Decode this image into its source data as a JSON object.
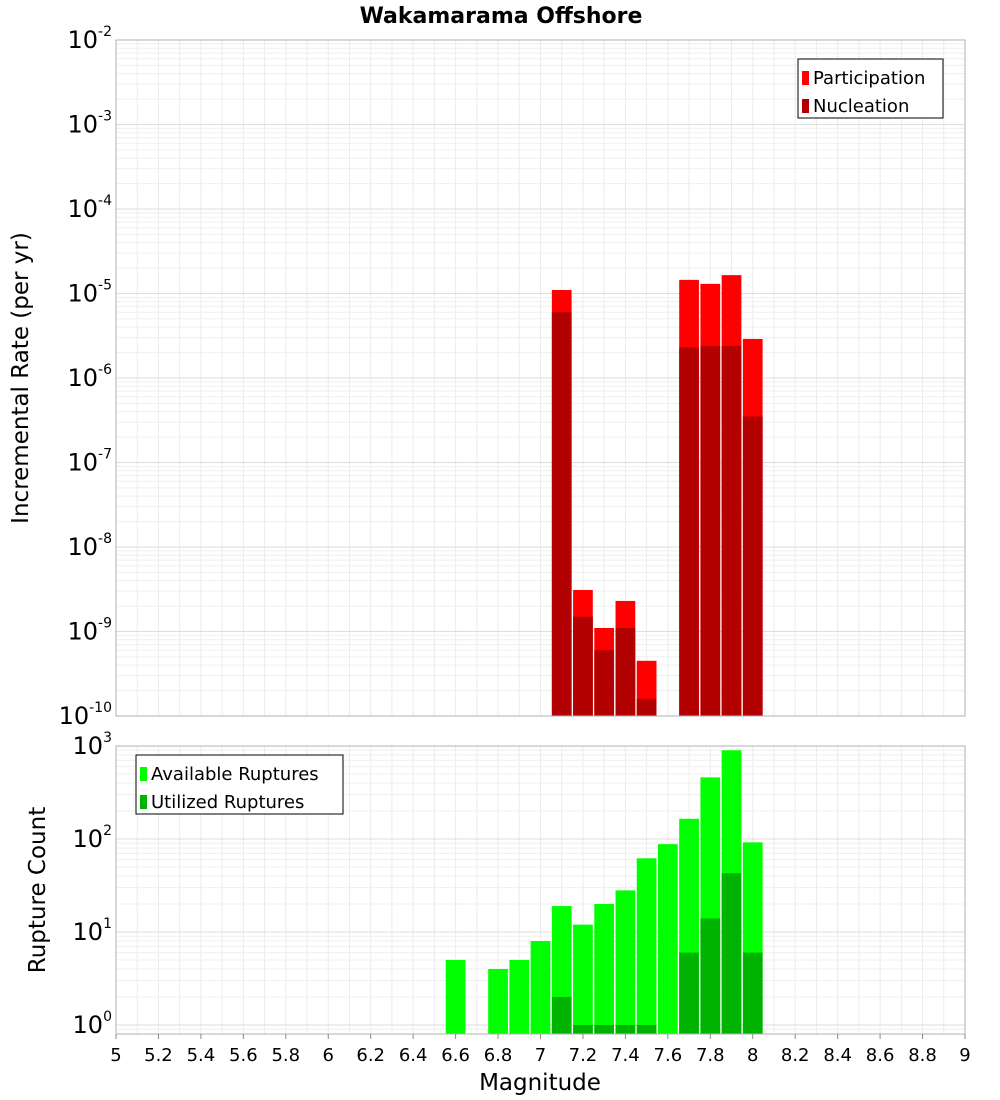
{
  "chart_data": [
    {
      "type": "bar",
      "title": "Wakamarama Offshore",
      "ylabel": "Incremental Rate (per yr)",
      "yscale": "log",
      "ylim": [
        1e-10,
        0.01
      ],
      "grid": true,
      "legend_position": "top-right",
      "x": [
        7.1,
        7.2,
        7.3,
        7.4,
        7.5,
        7.6,
        7.7,
        7.8,
        7.9,
        8.0
      ],
      "series": [
        {
          "name": "Participation",
          "color": "#ff0000",
          "values": [
            1.1e-05,
            3.1e-09,
            1.1e-09,
            2.3e-09,
            4.5e-10,
            null,
            1.45e-05,
            1.3e-05,
            1.65e-05,
            2.9e-06
          ]
        },
        {
          "name": "Nucleation",
          "color": "#b30000",
          "values": [
            6e-06,
            1.5e-09,
            6e-10,
            1.1e-09,
            1.6e-10,
            null,
            2.3e-06,
            2.4e-06,
            2.4e-06,
            3.5e-07
          ]
        }
      ],
      "yticks": [
        {
          "base": "10",
          "exp": "-10",
          "value": 1e-10
        },
        {
          "base": "10",
          "exp": "-9",
          "value": 1e-09
        },
        {
          "base": "10",
          "exp": "-8",
          "value": 1e-08
        },
        {
          "base": "10",
          "exp": "-7",
          "value": 1e-07
        },
        {
          "base": "10",
          "exp": "-6",
          "value": 1e-06
        },
        {
          "base": "10",
          "exp": "-5",
          "value": 1e-05
        },
        {
          "base": "10",
          "exp": "-4",
          "value": 0.0001
        },
        {
          "base": "10",
          "exp": "-3",
          "value": 0.001
        },
        {
          "base": "10",
          "exp": "-2",
          "value": 0.01
        }
      ]
    },
    {
      "type": "bar",
      "xlabel": "Magnitude",
      "ylabel": "Rupture Count",
      "yscale": "log",
      "ylim": [
        0.8,
        1000
      ],
      "xlim": [
        5,
        9
      ],
      "grid": true,
      "legend_position": "top-left",
      "x": [
        6.6,
        6.7,
        6.8,
        6.9,
        7.0,
        7.1,
        7.2,
        7.3,
        7.4,
        7.5,
        7.6,
        7.7,
        7.8,
        7.9,
        8.0
      ],
      "series": [
        {
          "name": "Available Ruptures",
          "color": "#00ff00",
          "values": [
            5,
            null,
            4,
            5,
            8,
            19,
            12,
            20,
            28,
            62,
            88,
            165,
            460,
            900,
            92
          ]
        },
        {
          "name": "Utilized Ruptures",
          "color": "#00b300",
          "values": [
            null,
            null,
            null,
            null,
            null,
            2,
            1,
            1,
            1,
            1,
            null,
            6,
            14,
            43,
            6
          ]
        }
      ],
      "yticks": [
        {
          "base": "10",
          "exp": "0",
          "value": 1
        },
        {
          "base": "10",
          "exp": "1",
          "value": 10
        },
        {
          "base": "10",
          "exp": "2",
          "value": 100
        },
        {
          "base": "10",
          "exp": "3",
          "value": 1000
        }
      ],
      "xticks": [
        "5",
        "5.2",
        "5.4",
        "5.6",
        "5.8",
        "6",
        "6.2",
        "6.4",
        "6.6",
        "6.8",
        "7",
        "7.2",
        "7.4",
        "7.6",
        "7.8",
        "8",
        "8.2",
        "8.4",
        "8.6",
        "8.8",
        "9"
      ]
    }
  ]
}
